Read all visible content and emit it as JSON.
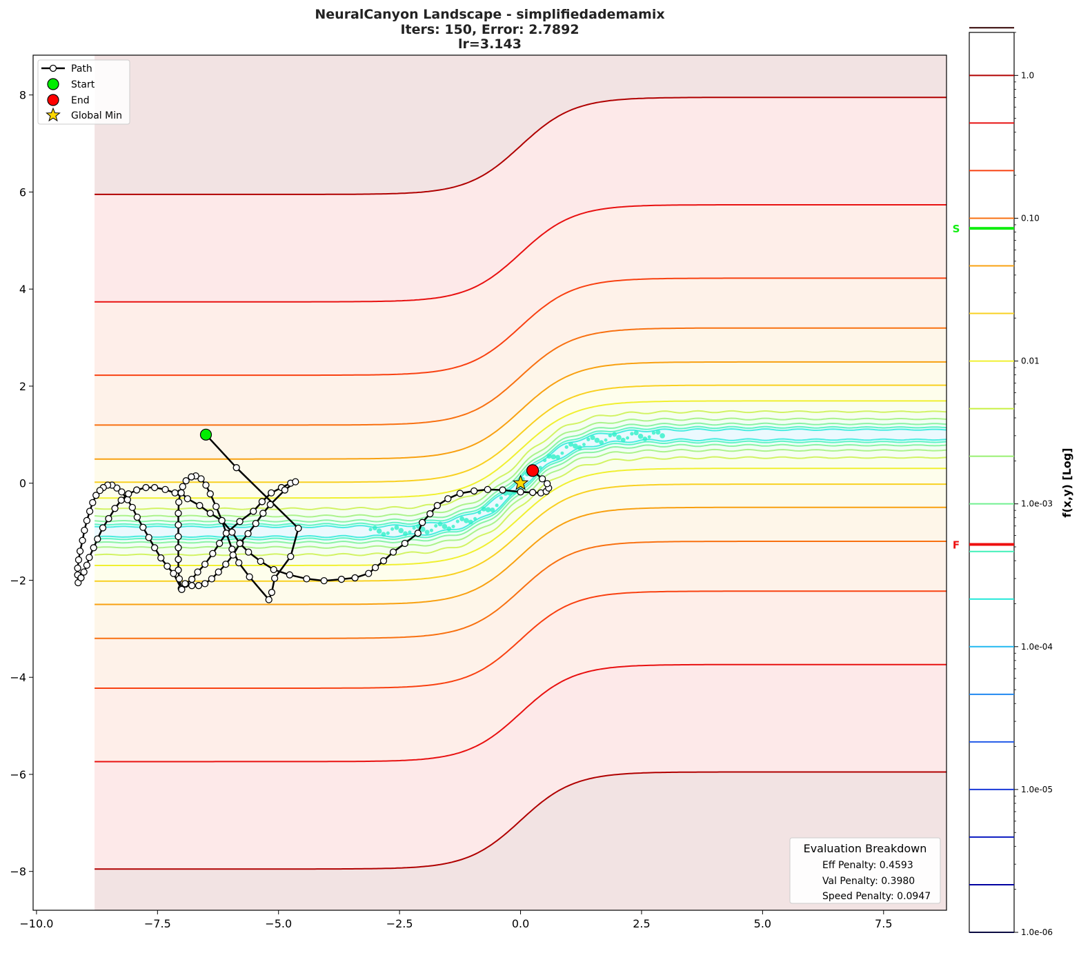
{
  "chart_data": {
    "type": "contour",
    "title": [
      "NeuralCanyon Landscape - simplifiedademamix",
      "Iters: 150, Error: 2.7892",
      "lr=3.143"
    ],
    "xlim": [
      -10.07,
      8.8
    ],
    "ylim": [
      -8.8,
      8.82
    ],
    "x_ticks": [
      -10.0,
      -7.5,
      -5.0,
      -2.5,
      0.0,
      2.5,
      5.0,
      7.5
    ],
    "x_tick_labels": [
      "−10.0",
      "−7.5",
      "−5.0",
      "−2.5",
      "0.0",
      "2.5",
      "5.0",
      "7.5"
    ],
    "y_ticks": [
      -8,
      -6,
      -4,
      -2,
      0,
      2,
      4,
      6,
      8
    ],
    "y_tick_labels": [
      "−8",
      "−6",
      "−4",
      "−2",
      "0",
      "2",
      "4",
      "6",
      "8"
    ],
    "grid": false,
    "legend": {
      "placement": "top-left",
      "entries": [
        "Path",
        "Start",
        "End",
        "Global Min"
      ]
    },
    "start": [
      -6.5,
      1.0
    ],
    "end": [
      0.25,
      0.26
    ],
    "global_min": [
      0.0,
      0.0
    ],
    "path": [
      [
        -6.5,
        1.0
      ],
      [
        -5.87,
        0.32
      ],
      [
        -4.59,
        -0.93
      ],
      [
        -4.75,
        -1.51
      ],
      [
        -5.08,
        -1.96
      ],
      [
        -5.14,
        -2.25
      ],
      [
        -5.2,
        -2.4
      ],
      [
        -5.6,
        -1.93
      ],
      [
        -5.82,
        -1.64
      ],
      [
        -5.96,
        -1.36
      ],
      [
        -6.17,
        -0.77
      ],
      [
        -6.29,
        -0.48
      ],
      [
        -6.41,
        -0.22
      ],
      [
        -6.5,
        -0.04
      ],
      [
        -6.6,
        0.09
      ],
      [
        -6.71,
        0.15
      ],
      [
        -6.8,
        0.13
      ],
      [
        -6.91,
        0.05
      ],
      [
        -6.98,
        -0.07
      ],
      [
        -7.03,
        -0.2
      ],
      [
        -7.06,
        -0.39
      ],
      [
        -7.07,
        -0.62
      ],
      [
        -7.07,
        -0.86
      ],
      [
        -7.07,
        -1.1
      ],
      [
        -7.07,
        -1.33
      ],
      [
        -7.07,
        -1.57
      ],
      [
        -7.07,
        -1.79
      ],
      [
        -7.05,
        -1.97
      ],
      [
        -7.01,
        -2.17
      ],
      [
        -6.92,
        -2.08
      ],
      [
        -6.79,
        -1.98
      ],
      [
        -6.67,
        -1.83
      ],
      [
        -6.52,
        -1.67
      ],
      [
        -6.36,
        -1.45
      ],
      [
        -6.22,
        -1.24
      ],
      [
        -6.08,
        -1.03
      ],
      [
        -5.8,
        -0.79
      ],
      [
        -5.52,
        -0.58
      ],
      [
        -5.34,
        -0.38
      ],
      [
        -5.15,
        -0.2
      ],
      [
        -4.94,
        -0.09
      ],
      [
        -4.75,
        0.0
      ],
      [
        -4.65,
        0.03
      ],
      [
        -4.87,
        -0.14
      ],
      [
        -5.17,
        -0.44
      ],
      [
        -5.32,
        -0.62
      ],
      [
        -5.47,
        -0.83
      ],
      [
        -5.63,
        -1.04
      ],
      [
        -5.79,
        -1.23
      ],
      [
        -5.94,
        -1.48
      ],
      [
        -6.09,
        -1.67
      ],
      [
        -6.24,
        -1.83
      ],
      [
        -6.38,
        -1.97
      ],
      [
        -6.52,
        -2.07
      ],
      [
        -6.65,
        -2.11
      ],
      [
        -6.79,
        -2.11
      ],
      [
        -6.93,
        -2.07
      ],
      [
        -7.0,
        -2.19
      ],
      [
        -7.17,
        -1.86
      ],
      [
        -7.3,
        -1.71
      ],
      [
        -7.43,
        -1.54
      ],
      [
        -7.56,
        -1.33
      ],
      [
        -7.68,
        -1.12
      ],
      [
        -7.8,
        -0.91
      ],
      [
        -7.92,
        -0.7
      ],
      [
        -8.02,
        -0.5
      ],
      [
        -8.12,
        -0.34
      ],
      [
        -8.24,
        -0.18
      ],
      [
        -8.34,
        -0.1
      ],
      [
        -8.44,
        -0.04
      ],
      [
        -8.53,
        -0.04
      ],
      [
        -8.62,
        -0.09
      ],
      [
        -8.69,
        -0.15
      ],
      [
        -8.77,
        -0.25
      ],
      [
        -8.84,
        -0.4
      ],
      [
        -8.9,
        -0.58
      ],
      [
        -8.96,
        -0.77
      ],
      [
        -9.01,
        -0.97
      ],
      [
        -9.05,
        -1.18
      ],
      [
        -9.1,
        -1.4
      ],
      [
        -9.13,
        -1.58
      ],
      [
        -9.15,
        -1.75
      ],
      [
        -9.15,
        -1.89
      ],
      [
        -9.14,
        -2.05
      ],
      [
        -9.08,
        -1.95
      ],
      [
        -9.02,
        -1.83
      ],
      [
        -8.96,
        -1.69
      ],
      [
        -8.91,
        -1.53
      ],
      [
        -8.82,
        -1.33
      ],
      [
        -8.74,
        -1.15
      ],
      [
        -8.63,
        -0.92
      ],
      [
        -8.51,
        -0.73
      ],
      [
        -8.38,
        -0.52
      ],
      [
        -8.25,
        -0.35
      ],
      [
        -8.1,
        -0.22
      ],
      [
        -7.93,
        -0.14
      ],
      [
        -7.74,
        -0.09
      ],
      [
        -7.56,
        -0.09
      ],
      [
        -7.34,
        -0.13
      ],
      [
        -7.14,
        -0.2
      ],
      [
        -7.01,
        -0.2
      ],
      [
        -6.88,
        -0.32
      ],
      [
        -6.63,
        -0.46
      ],
      [
        -6.41,
        -0.62
      ],
      [
        -6.17,
        -0.77
      ],
      [
        -5.96,
        -1.01
      ],
      [
        -5.8,
        -1.24
      ],
      [
        -5.62,
        -1.42
      ],
      [
        -5.37,
        -1.61
      ],
      [
        -5.1,
        -1.78
      ],
      [
        -4.77,
        -1.89
      ],
      [
        -4.42,
        -1.97
      ],
      [
        -4.06,
        -2.01
      ],
      [
        -3.7,
        -1.98
      ],
      [
        -3.42,
        -1.95
      ],
      [
        -3.14,
        -1.86
      ],
      [
        -3.0,
        -1.74
      ],
      [
        -2.83,
        -1.6
      ],
      [
        -2.63,
        -1.42
      ],
      [
        -2.39,
        -1.24
      ],
      [
        -2.12,
        -1.03
      ],
      [
        -2.03,
        -0.81
      ],
      [
        -1.87,
        -0.63
      ],
      [
        -1.72,
        -0.46
      ],
      [
        -1.5,
        -0.32
      ],
      [
        -1.25,
        -0.21
      ],
      [
        -0.96,
        -0.16
      ],
      [
        -0.68,
        -0.13
      ],
      [
        -0.37,
        -0.14
      ],
      [
        0.0,
        -0.18
      ],
      [
        0.25,
        -0.19
      ],
      [
        0.42,
        -0.2
      ],
      [
        0.53,
        -0.17
      ],
      [
        0.58,
        -0.1
      ],
      [
        0.55,
        -0.01
      ],
      [
        0.45,
        0.09
      ],
      [
        0.25,
        0.26
      ]
    ],
    "contour_levels_log10": [
      -3.667,
      -3.333,
      -3.0,
      -2.667,
      -2.333,
      -2.0,
      -1.667,
      -1.333,
      -1.0,
      -0.667,
      -0.333,
      0.0
    ],
    "colorbar": {
      "label": "f(x,y) [Log]",
      "scale": "log",
      "range": [
        1e-06,
        2.0
      ],
      "tick_values": [
        1e-06,
        1e-05,
        0.0001,
        0.001,
        0.01,
        0.1,
        1.0
      ],
      "tick_labels": [
        "1.0e-06",
        "1.0e-05",
        "1.0e-04",
        "1.0e-03",
        "0.01",
        "0.10",
        "1.0"
      ],
      "level_colors": [
        "#0a0a40",
        "#0000a0",
        "#0818c0",
        "#1838d8",
        "#2058e8",
        "#2088f0",
        "#20b8f0",
        "#20e8d8",
        "#40f0b8",
        "#70f090",
        "#98f070",
        "#c8f040",
        "#f0f030",
        "#f8d020",
        "#f8a010",
        "#f87010",
        "#f84010",
        "#e81010",
        "#b00000",
        "#300000"
      ],
      "markers": [
        {
          "label": "S",
          "value": 0.085,
          "color": "#10ee10"
        },
        {
          "label": "F",
          "value": 0.00052,
          "color": "#ee1010"
        }
      ]
    },
    "evaluation_breakdown": {
      "title": "Evaluation Breakdown",
      "lines": [
        "Eff Penalty: 0.4593",
        "Val Penalty: 0.3980",
        "Speed Penalty: 0.0947"
      ]
    }
  }
}
